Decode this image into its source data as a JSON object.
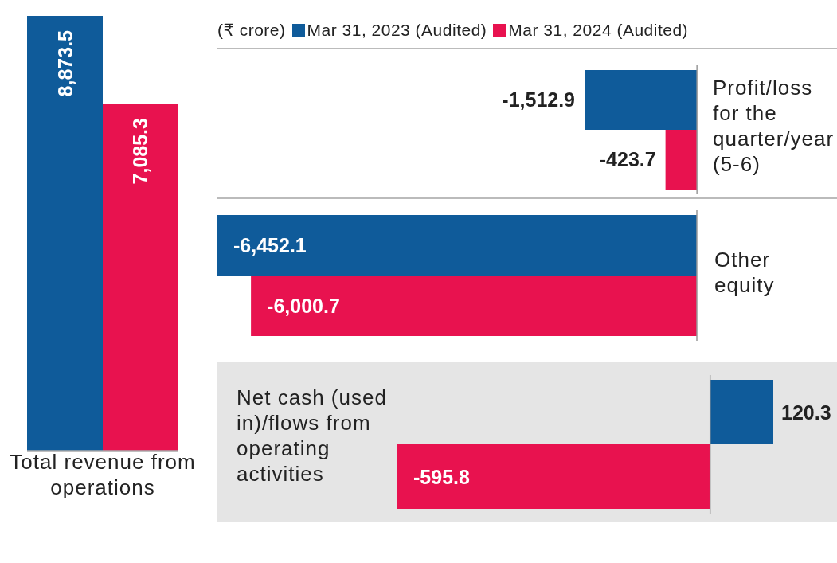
{
  "chart_data": [
    {
      "type": "bar",
      "categories": [
        "Total revenue from operations"
      ],
      "series": [
        {
          "color": "#0f5b9a",
          "values": [
            8873.5
          ],
          "value_labels": [
            "8,873.5"
          ]
        },
        {
          "color": "#e8124f",
          "values": [
            7085.3
          ],
          "value_labels": [
            "7,085.3"
          ]
        }
      ]
    },
    {
      "type": "bar",
      "orientation": "horizontal",
      "legend_title": "(₹ crore)",
      "legend": "top",
      "categories": [
        "Profit/loss for the quarter/year (5-6)"
      ],
      "series": [
        {
          "name": "Mar 31, 2023 (Audited)",
          "color": "#0f5b9a",
          "values": [
            -1512.9
          ],
          "value_labels": [
            "-1,512.9"
          ]
        },
        {
          "name": "Mar 31, 2024 (Audited)",
          "color": "#e8124f",
          "values": [
            -423.7
          ],
          "value_labels": [
            "-423.7"
          ]
        }
      ]
    },
    {
      "type": "bar",
      "orientation": "horizontal",
      "categories": [
        "Other equity"
      ],
      "series": [
        {
          "color": "#0f5b9a",
          "values": [
            -6452.1
          ],
          "value_labels": [
            "-6,452.1"
          ]
        },
        {
          "color": "#e8124f",
          "values": [
            -6000.7
          ],
          "value_labels": [
            "-6,000.7"
          ]
        }
      ]
    },
    {
      "type": "bar",
      "orientation": "horizontal",
      "categories": [
        "Net cash (used in)/flows from operating activities"
      ],
      "series": [
        {
          "color": "#0f5b9a",
          "values": [
            120.3
          ],
          "value_labels": [
            "120.3"
          ]
        },
        {
          "color": "#e8124f",
          "values": [
            -595.8
          ],
          "value_labels": [
            "-595.8"
          ]
        }
      ]
    }
  ]
}
